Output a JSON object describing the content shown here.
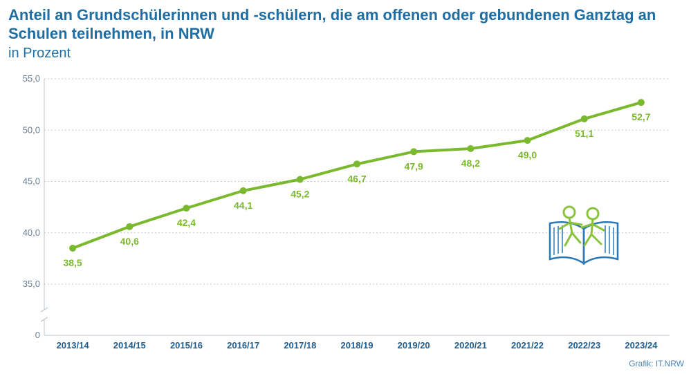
{
  "header": {
    "title": "Anteil an Grundschülerinnen und -schülern, die am offenen oder gebundenen Ganztag an Schulen teilnehmen, in NRW",
    "subtitle": "in Prozent"
  },
  "footer": {
    "source": "Grafik: IT.NRW"
  },
  "colors": {
    "line": "#7ab82e",
    "title": "#1f6ea3",
    "axis": "#1f5d8f",
    "icon": "#2a78b5"
  },
  "icon": {
    "name": "children-on-book-icon"
  },
  "chart_data": {
    "type": "line",
    "title": "Anteil an Grundschülerinnen und -schülern, die am offenen oder gebundenen Ganztag an Schulen teilnehmen, in NRW",
    "subtitle": "in Prozent",
    "categories": [
      "2013/14",
      "2014/15",
      "2015/16",
      "2016/17",
      "2017/18",
      "2018/19",
      "2019/20",
      "2020/21",
      "2021/22",
      "2022/23",
      "2023/24"
    ],
    "series": [
      {
        "values": [
          38.5,
          40.6,
          42.4,
          44.1,
          45.2,
          46.7,
          47.9,
          48.2,
          49.0,
          51.1,
          52.7
        ]
      }
    ],
    "value_labels": [
      "38,5",
      "40,6",
      "42,4",
      "44,1",
      "45,2",
      "46,7",
      "47,9",
      "48,2",
      "49,0",
      "51,1",
      "52,7"
    ],
    "y_ticks": [
      35,
      40,
      45,
      50,
      55
    ],
    "y_tick_labels": [
      "35,0",
      "40,0",
      "45,0",
      "50,0",
      "55,0"
    ],
    "y_base_label": "0",
    "ylim": [
      35,
      55
    ],
    "axis_break": true,
    "grid": true
  }
}
